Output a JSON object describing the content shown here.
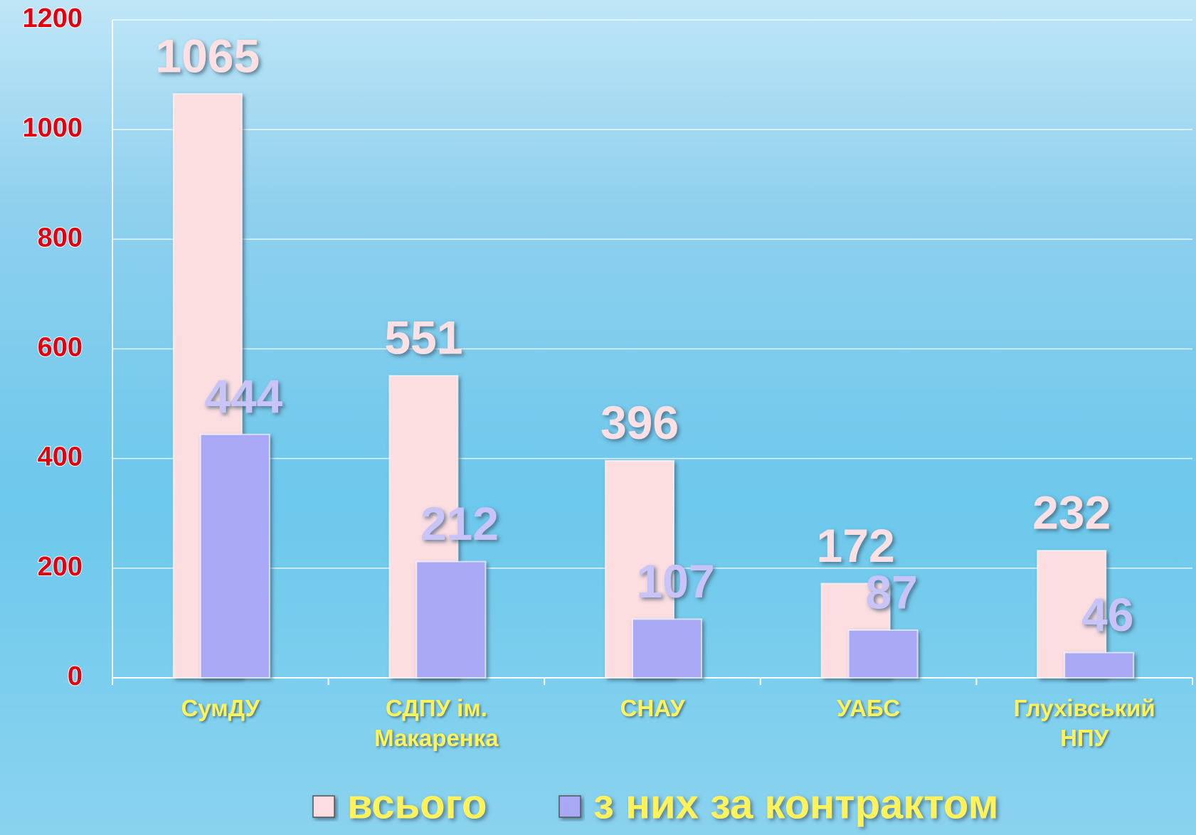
{
  "chart_data": {
    "type": "bar",
    "categories": [
      "СумДУ",
      "СДПУ ім. Макаренка",
      "СНАУ",
      "УАБС",
      "Глухівський НПУ"
    ],
    "series": [
      {
        "name": "всього",
        "color": "#fcdde0",
        "values": [
          1065,
          551,
          396,
          172,
          232
        ]
      },
      {
        "name": "з них за контрактом",
        "color": "#a9a8f5",
        "values": [
          444,
          212,
          107,
          87,
          46
        ]
      }
    ],
    "ylim": [
      0,
      1200
    ],
    "yticks": [
      0,
      200,
      400,
      600,
      800,
      1000,
      1200
    ],
    "grid": true,
    "legend": "bottom"
  }
}
